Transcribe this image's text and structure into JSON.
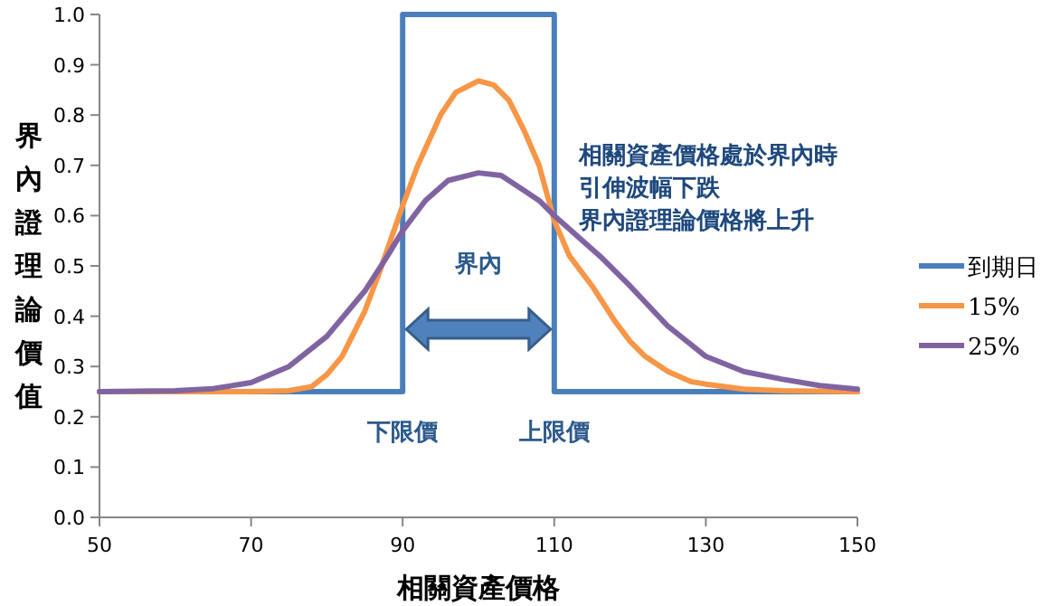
{
  "chart_data": {
    "type": "line",
    "xlabel": "相關資產價格",
    "ylabel": "界內證理論價值",
    "xlim": [
      50,
      150
    ],
    "xticks": [
      50,
      70,
      90,
      110,
      130,
      150
    ],
    "ylim": [
      0,
      1
    ],
    "yticks": [
      {
        "value": 0,
        "label": "0.0"
      },
      {
        "value": 0.1,
        "label": "0.1"
      },
      {
        "value": 0.2,
        "label": "0.2"
      },
      {
        "value": 0.3,
        "label": "0.3"
      },
      {
        "value": 0.4,
        "label": "0.4"
      },
      {
        "value": 0.5,
        "label": "0.5"
      },
      {
        "value": 0.6,
        "label": "0.6"
      },
      {
        "value": 0.7,
        "label": "0.7"
      },
      {
        "value": 0.8,
        "label": "0.8"
      },
      {
        "value": 0.9,
        "label": "0.9"
      },
      {
        "value": 1,
        "label": "1.0"
      }
    ],
    "grid": false,
    "legend": "right",
    "marker": "none",
    "line_style": "solid",
    "series": [
      {
        "name": "到期日",
        "color": "#4a7ebb",
        "x": [
          50,
          90,
          90,
          110,
          110,
          150
        ],
        "values": [
          0.25,
          0.25,
          1.0,
          1.0,
          0.25,
          0.25
        ]
      },
      {
        "name": "15%",
        "color": "#f79646",
        "x": [
          50,
          70,
          75,
          78,
          80,
          82,
          85,
          87,
          90,
          92,
          95,
          97,
          100,
          102,
          104,
          106,
          108,
          110,
          112,
          115,
          118,
          120,
          122,
          125,
          128,
          130,
          135,
          140,
          150
        ],
        "values": [
          0.25,
          0.25,
          0.252,
          0.26,
          0.284,
          0.32,
          0.41,
          0.49,
          0.62,
          0.7,
          0.8,
          0.845,
          0.868,
          0.86,
          0.83,
          0.77,
          0.7,
          0.59,
          0.52,
          0.46,
          0.39,
          0.35,
          0.32,
          0.29,
          0.27,
          0.265,
          0.255,
          0.252,
          0.25
        ]
      },
      {
        "name": "25%",
        "color": "#8064a2",
        "x": [
          50,
          60,
          65,
          70,
          75,
          80,
          85,
          88,
          90,
          93,
          96,
          100,
          103,
          106,
          108,
          110,
          113,
          116,
          120,
          125,
          130,
          135,
          140,
          145,
          150
        ],
        "values": [
          0.25,
          0.252,
          0.256,
          0.268,
          0.3,
          0.36,
          0.45,
          0.52,
          0.57,
          0.63,
          0.67,
          0.685,
          0.68,
          0.65,
          0.63,
          0.6,
          0.56,
          0.52,
          0.46,
          0.38,
          0.32,
          0.29,
          0.275,
          0.262,
          0.255
        ]
      }
    ],
    "annotations": [
      "界內",
      "下限價",
      "上限價",
      "相關資產價格處於界內時",
      "引伸波幅下跌",
      "界內證理論價格將上升"
    ]
  }
}
